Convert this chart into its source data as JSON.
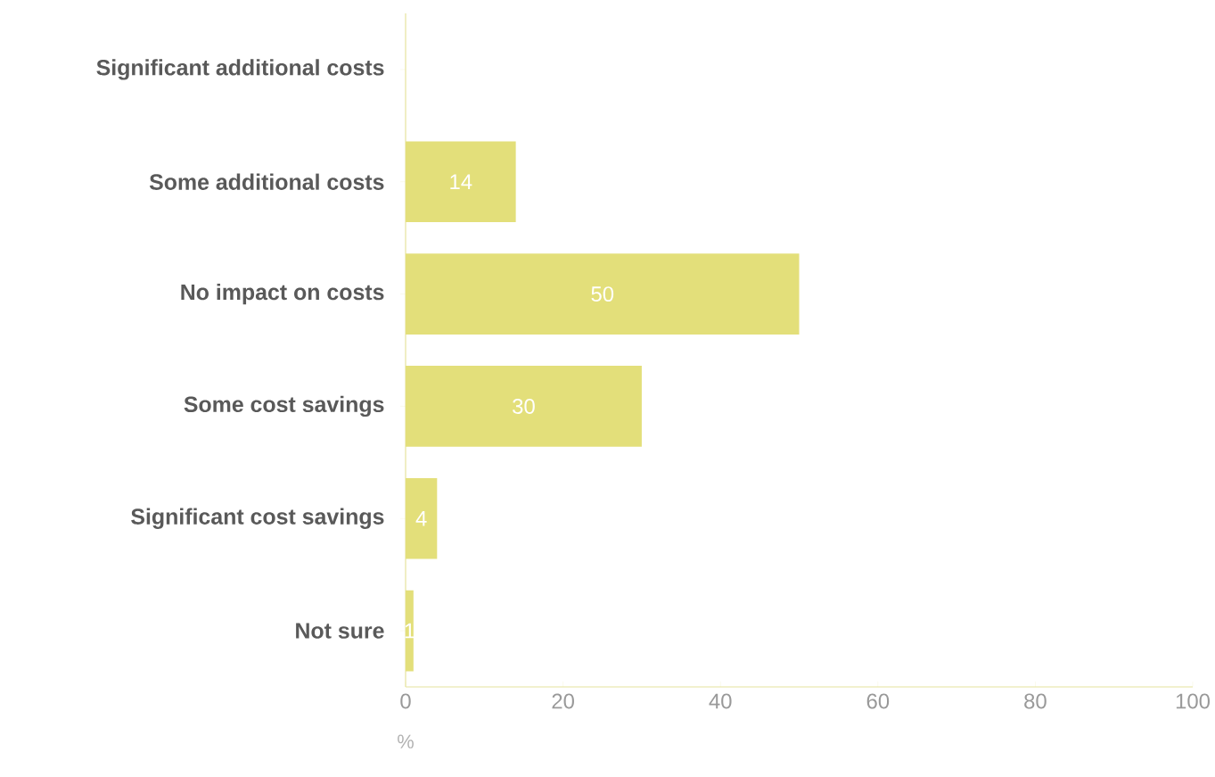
{
  "chart_data": {
    "type": "bar",
    "orientation": "horizontal",
    "xlabel": "%",
    "categories": [
      "Significant additional costs",
      "Some additional costs",
      "No impact on costs",
      "Some cost savings",
      "Significant cost savings",
      "Not sure"
    ],
    "values": [
      0,
      14,
      50,
      30,
      4,
      1
    ],
    "value_labels": [
      null,
      "14",
      "50",
      "30",
      "4",
      "1"
    ],
    "color": "#e3df7a",
    "xlim": [
      0,
      100
    ],
    "xticks": [
      0,
      20,
      40,
      60,
      80,
      100
    ]
  }
}
